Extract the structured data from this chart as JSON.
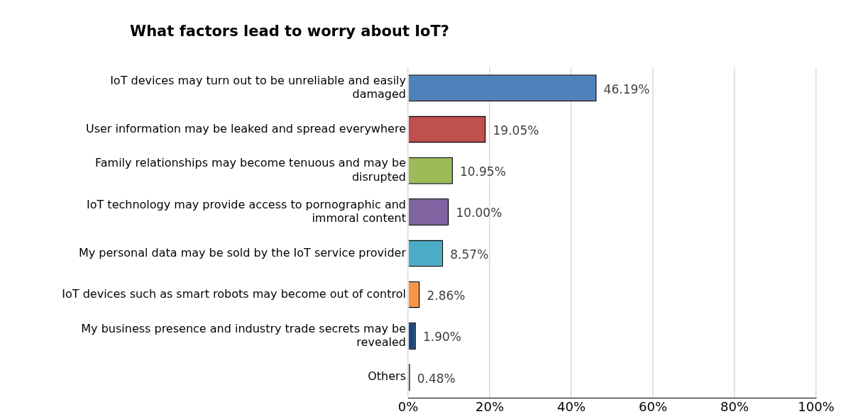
{
  "chart_data": {
    "type": "bar",
    "orientation": "horizontal",
    "title": "What factors lead to worry about IoT?",
    "categories": [
      "IoT devices may turn out to be unreliable and easily damaged",
      "User information may be leaked and spread everywhere",
      "Family relationships may become tenuous and may be disrupted",
      "IoT technology may provide access to pornographic and immoral content",
      "My personal data may be sold by the IoT service provider",
      "IoT devices such as smart robots may become out of control",
      "My business presence and industry trade secrets may be revealed",
      "Others"
    ],
    "values": [
      46.19,
      19.05,
      10.95,
      10.0,
      8.57,
      2.86,
      1.9,
      0.48
    ],
    "colors": [
      "#4f81bd",
      "#c0504d",
      "#9bbb59",
      "#8064a2",
      "#4bacc6",
      "#f79646",
      "#1f497d",
      "#4a2b2b"
    ],
    "value_labels": [
      "46.19%",
      "19.05%",
      "10.95%",
      "10.00%",
      "8.57%",
      "2.86%",
      "1.90%",
      "0.48%"
    ],
    "xlim": [
      0,
      100
    ],
    "xticks": [
      {
        "value": 0,
        "label": "0%"
      },
      {
        "value": 20,
        "label": "20%"
      },
      {
        "value": 40,
        "label": "40%"
      },
      {
        "value": 60,
        "label": "60%"
      },
      {
        "value": 80,
        "label": "80%"
      },
      {
        "value": 100,
        "label": "100%"
      }
    ],
    "grid": "x",
    "legend": false
  }
}
